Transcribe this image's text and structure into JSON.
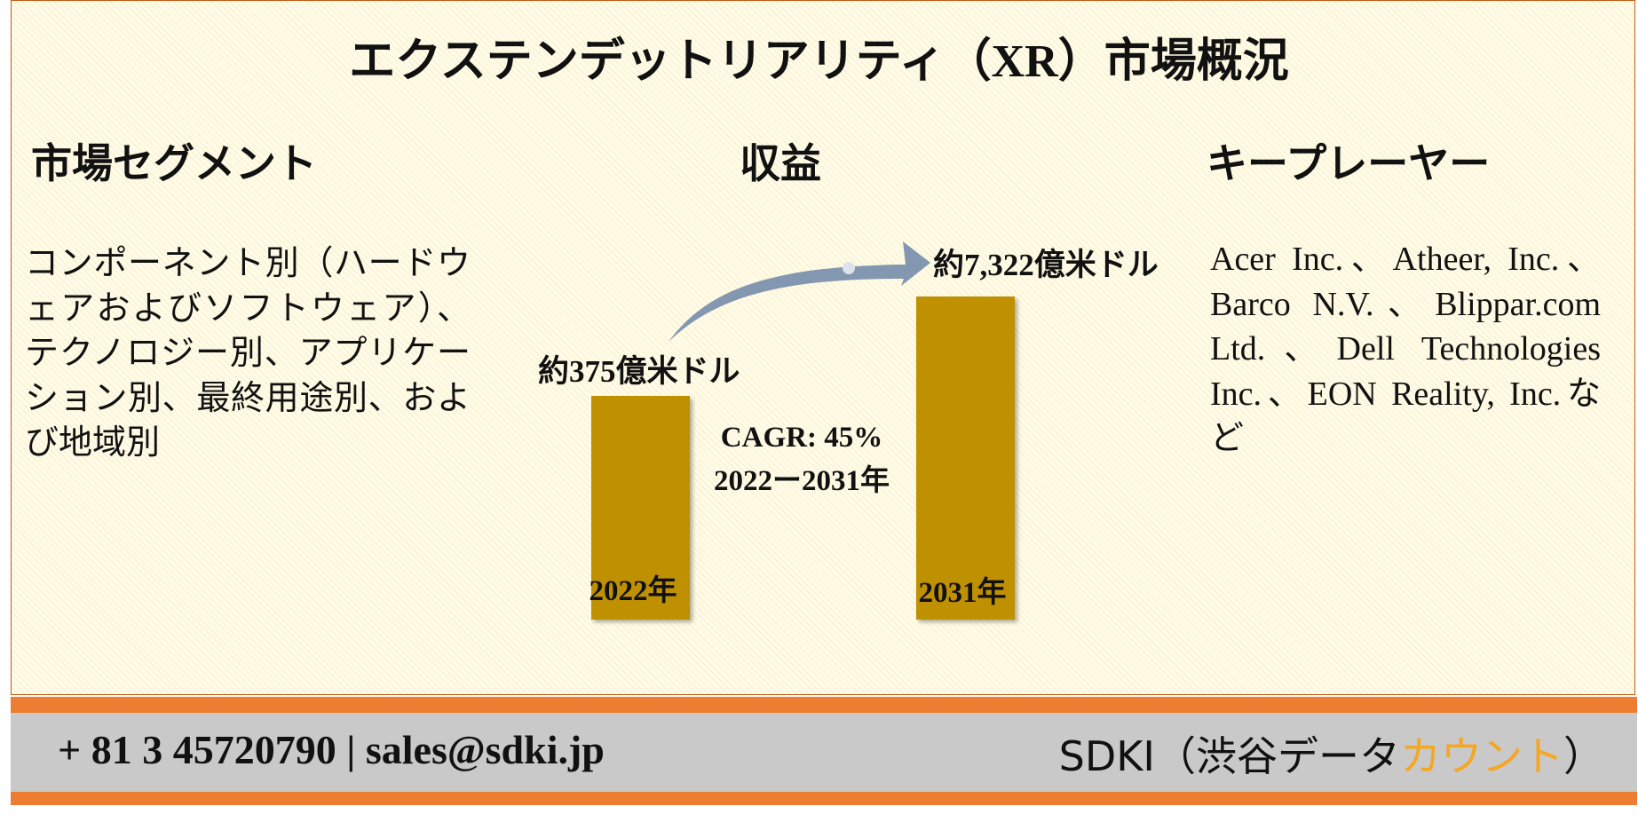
{
  "header": {
    "title": "エクステンデットリアリティ（XR）市場概況"
  },
  "segments": {
    "heading": "市場セグメント",
    "text": "コンポーネント別（ハードウェアおよびソフトウェア）、テクノロジー別、アプリケーション別、最終用途別、および地域別"
  },
  "revenue": {
    "heading": "収益",
    "start_value": "約375億米ドル",
    "end_value": "約7,322億米ドル",
    "cagr": "CAGR: 45%",
    "period": "2022ー2031年",
    "start_year": "2022年",
    "end_year": "2031年"
  },
  "players": {
    "heading": "キープレーヤー",
    "text": "Acer Inc.、Atheer, Inc.、Barco N.V.、Blippar.com Ltd.、Dell Technologies Inc.、EON Reality, Inc.など"
  },
  "footer": {
    "contact": "+ 81 3 45720790 | sales@sdki.jp",
    "company_prefix": "SDKI（渋谷データ",
    "company_highlight": "カウント",
    "company_suffix": "）"
  }
}
